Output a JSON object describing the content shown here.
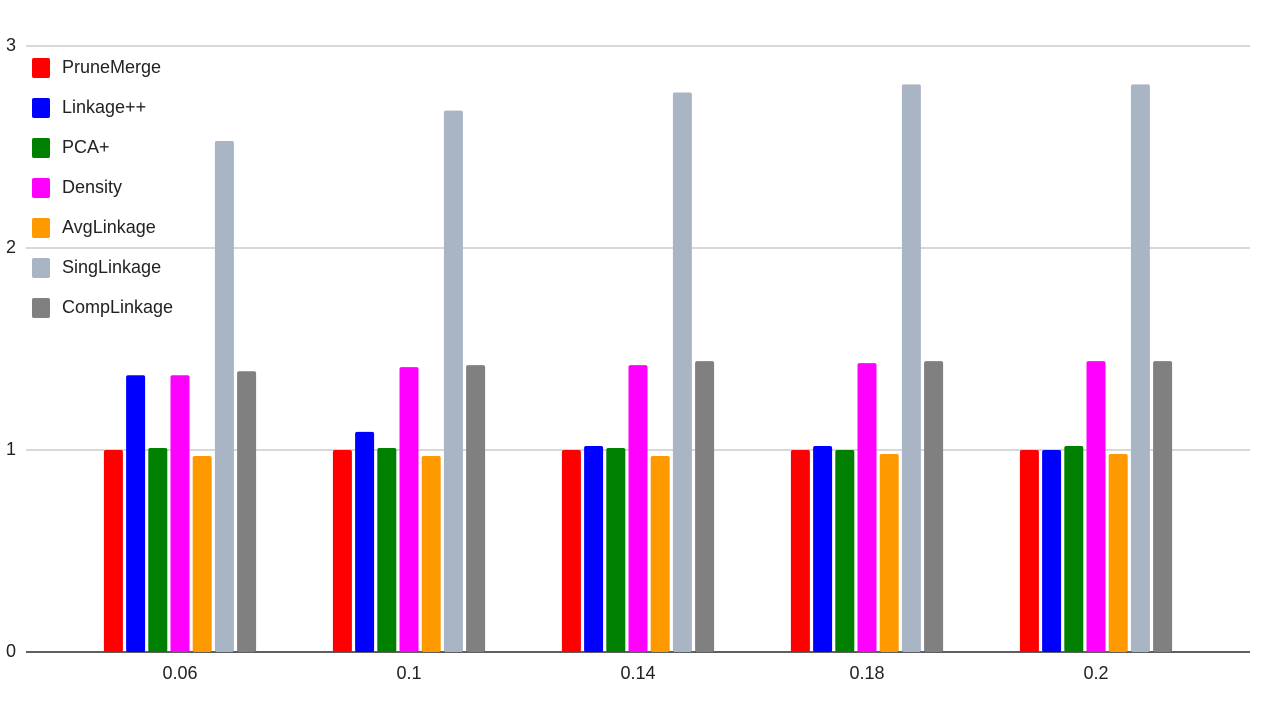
{
  "chart_data": {
    "type": "bar",
    "categories": [
      "0.06",
      "0.1",
      "0.14",
      "0.18",
      "0.2"
    ],
    "series": [
      {
        "name": "PruneMerge",
        "color": "#ff0000",
        "values": [
          1.0,
          1.0,
          1.0,
          1.0,
          1.0
        ]
      },
      {
        "name": "Linkage++",
        "color": "#0000ff",
        "values": [
          1.37,
          1.09,
          1.02,
          1.02,
          1.0
        ]
      },
      {
        "name": "PCA+",
        "color": "#008000",
        "values": [
          1.01,
          1.01,
          1.01,
          1.0,
          1.02
        ]
      },
      {
        "name": "Density",
        "color": "#ff00ff",
        "values": [
          1.37,
          1.41,
          1.42,
          1.43,
          1.44
        ]
      },
      {
        "name": "AvgLinkage",
        "color": "#ff9900",
        "values": [
          0.97,
          0.97,
          0.97,
          0.98,
          0.98
        ]
      },
      {
        "name": "SingLinkage",
        "color": "#a9b4c4",
        "values": [
          2.53,
          2.68,
          2.77,
          2.81,
          2.81
        ]
      },
      {
        "name": "CompLinkage",
        "color": "#808080",
        "values": [
          1.39,
          1.42,
          1.44,
          1.44,
          1.44
        ]
      }
    ],
    "ylim": [
      0,
      3
    ],
    "yticks": [
      0,
      1,
      2,
      3
    ],
    "grid": true,
    "legend": "upper left"
  }
}
